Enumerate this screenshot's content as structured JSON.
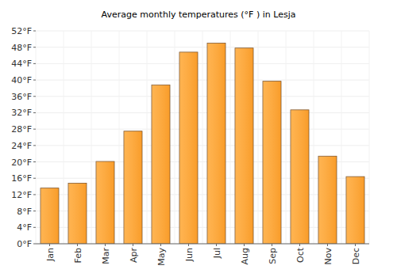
{
  "chart_data": {
    "type": "bar",
    "title": "Average monthly temperatures (°F ) in Lesja",
    "categories": [
      "Jan",
      "Feb",
      "Mar",
      "Apr",
      "May",
      "Jun",
      "Jul",
      "Aug",
      "Sep",
      "Oct",
      "Nov",
      "Dec"
    ],
    "values": [
      13.6,
      14.8,
      20.1,
      27.5,
      38.8,
      46.8,
      49.0,
      47.8,
      39.7,
      32.7,
      21.4,
      16.4
    ],
    "color": "#ffa733",
    "ylim": [
      0,
      52
    ],
    "yticks": [
      {
        "value": 0,
        "label": "0°F"
      },
      {
        "value": 4,
        "label": "4°F"
      },
      {
        "value": 8,
        "label": "8°F"
      },
      {
        "value": 12,
        "label": "12°F"
      },
      {
        "value": 16,
        "label": "16°F"
      },
      {
        "value": 20,
        "label": "20°F"
      },
      {
        "value": 24,
        "label": "24°F"
      },
      {
        "value": 28,
        "label": "28°F"
      },
      {
        "value": 32,
        "label": "32°F"
      },
      {
        "value": 36,
        "label": "36°F"
      },
      {
        "value": 40,
        "label": "40°F"
      },
      {
        "value": 44,
        "label": "44°F"
      },
      {
        "value": 48,
        "label": "48°F"
      },
      {
        "value": 52,
        "label": "52°F"
      }
    ],
    "grid": true
  }
}
